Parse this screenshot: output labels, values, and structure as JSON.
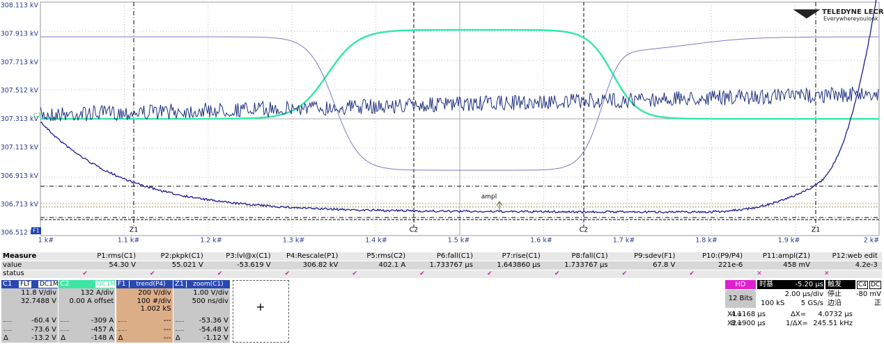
{
  "plot": {
    "y_labels": [
      "308.113 kV",
      "307.913 kV",
      "307.713 kV",
      "307.512 kV",
      "307.313 kV",
      "307.113 kV",
      "306.913 kV",
      "306.713 kV",
      "306.512 kV"
    ],
    "x_labels": [
      "1 k#",
      "1.1 k#",
      "1.2 k#",
      "1.3 k#",
      "1.4 k#",
      "1.5 k#",
      "1.6 k#",
      "1.7 k#",
      "1.8 k#",
      "1.9 k#",
      "2 k#"
    ],
    "cursor_labels": [
      "Z1",
      "C2",
      "C2",
      "Z1"
    ],
    "trace_markers": [
      "C2",
      "F1"
    ],
    "annotation": "ampl",
    "logo": {
      "brand": "TELEDYNE LECROY",
      "tagline": "Everywhereyoulook"
    }
  },
  "measure": {
    "header": "Measure",
    "row_labels": [
      "value",
      "status"
    ],
    "columns": [
      "P1:rms(C1)",
      "P2:pkpk(C1)",
      "P3:lvl@x(C1)",
      "P4:Rescale(P1)",
      "P5:rms(C2)",
      "P6:fall(C1)",
      "P7:rise(C1)",
      "P8:fall(C1)",
      "P9:sdev(F1)",
      "P10:(P9/P4)",
      "P11:ampl(Z1)",
      "P12:web edit"
    ],
    "values": [
      "54.30 V",
      "55.021 V",
      "-53.619 V",
      "306.82 kV",
      "402.1 A",
      "1.733767 µs",
      "1.643860 µs",
      "1.733767 µs",
      "67.8 V",
      "221e-6",
      "458 mV",
      "4.2e-3"
    ],
    "status": [
      "✔",
      "✔",
      "✔",
      "✔",
      "✔",
      "✔",
      "✔",
      "✔",
      "✔",
      "✔",
      "✕",
      "✕"
    ]
  },
  "channels": [
    {
      "name": "C1",
      "tags": [
        "FLT",
        "DC1M"
      ],
      "lines": [
        "11.8 V/div",
        "32.7488 V"
      ],
      "stats": [
        "-60.4 V",
        "-73.6 V",
        "-13.2 V"
      ],
      "delta": "Δ"
    },
    {
      "name": "C2",
      "tags": [
        "DC1M"
      ],
      "lines": [
        "132 A/div",
        "0.00 A offset"
      ],
      "stats": [
        "-309 A",
        "-457 A",
        "-148 A"
      ],
      "delta": "Δ"
    },
    {
      "name": "F1",
      "tags": [
        "trend(P4)"
      ],
      "lines": [
        "200 V/div",
        "100 #/div",
        "1.002 kS"
      ],
      "stats": [
        "---",
        "---",
        "---"
      ],
      "delta": "Δ"
    },
    {
      "name": "Z1",
      "tags": [
        "zoom(C1)"
      ],
      "lines": [
        "1.00 V/div",
        "500 ns/div"
      ],
      "stats": [
        "-53.36 V",
        "-54.48 V",
        "-1.12 V"
      ],
      "delta": "Δ"
    }
  ],
  "add_button": "+",
  "timebase": {
    "mode": "HD",
    "bits": "12 Bits",
    "tb_label": "时基",
    "delay": "-5.20 µs",
    "trig_label": "触发",
    "trig_src": "C4",
    "trig_coupling": "DC",
    "tdiv": "2.00 µs/div",
    "state": "停止",
    "level": "-80 mV",
    "samples": "100 kS",
    "rate": "5 GS/s",
    "trig_type": "边沿",
    "slope": "正"
  },
  "cursors": {
    "x1_label": "X1=",
    "x1": "4.1168 µs",
    "dx_label": "ΔX=",
    "dx": "4.0732 µs",
    "x2_label": "X2=",
    "x2": "8.1900 µs",
    "inv_label": "1/ΔX=",
    "inv": "245.51 kHz"
  }
}
